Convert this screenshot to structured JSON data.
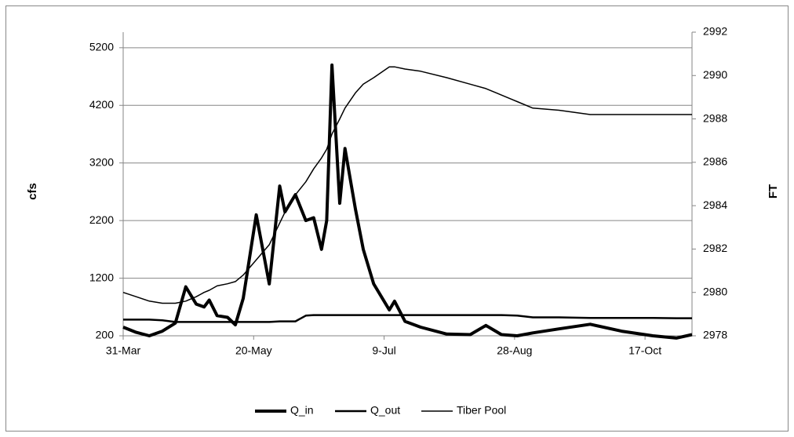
{
  "chart_data": {
    "type": "line",
    "y_label": "cfs",
    "y2_label": "FT",
    "x": [
      "03-31",
      "04-05",
      "04-10",
      "04-15",
      "04-20",
      "04-24",
      "04-28",
      "05-01",
      "05-03",
      "05-06",
      "05-10",
      "05-13",
      "05-16",
      "05-21",
      "05-26",
      "05-30",
      "06-01",
      "06-05",
      "06-09",
      "06-12",
      "06-15",
      "06-17",
      "06-19",
      "06-22",
      "06-24",
      "06-28",
      "07-01",
      "07-05",
      "07-11",
      "07-13",
      "07-17",
      "07-23",
      "08-02",
      "08-11",
      "08-17",
      "08-23",
      "08-29",
      "09-04",
      "09-14",
      "09-26",
      "10-08",
      "10-20",
      "10-29",
      "11-04"
    ],
    "series": [
      {
        "name": "Q_in",
        "color": "#000000",
        "width": 4,
        "values": [
          350,
          260,
          200,
          280,
          420,
          1050,
          750,
          700,
          820,
          550,
          520,
          390,
          850,
          2300,
          1100,
          2800,
          2350,
          2650,
          2200,
          2250,
          1700,
          2200,
          4900,
          2500,
          3450,
          2400,
          1700,
          1100,
          650,
          800,
          450,
          350,
          230,
          220,
          380,
          220,
          200,
          250,
          320,
          400,
          280,
          200,
          160,
          220
        ]
      },
      {
        "name": "Q_out",
        "color": "#000000",
        "width": 2.5,
        "values": [
          480,
          480,
          480,
          470,
          440,
          440,
          440,
          440,
          440,
          440,
          440,
          440,
          440,
          440,
          440,
          450,
          450,
          450,
          550,
          560,
          560,
          560,
          560,
          560,
          560,
          560,
          560,
          560,
          560,
          560,
          560,
          560,
          560,
          560,
          560,
          560,
          550,
          520,
          520,
          510,
          510,
          510,
          505,
          505
        ]
      },
      {
        "name": "Tiber Pool",
        "color": "#000000",
        "width": 1.5,
        "axis": "y2",
        "values": [
          2980.0,
          2979.8,
          2979.6,
          2979.5,
          2979.5,
          2979.6,
          2979.8,
          2980.0,
          2980.1,
          2980.3,
          2980.4,
          2980.5,
          2980.8,
          2981.5,
          2982.2,
          2983.2,
          2983.7,
          2984.5,
          2985.1,
          2985.7,
          2986.2,
          2986.6,
          2987.3,
          2988.0,
          2988.5,
          2989.2,
          2989.6,
          2989.9,
          2990.4,
          2990.4,
          2990.3,
          2990.2,
          2989.9,
          2989.6,
          2989.4,
          2989.1,
          2988.8,
          2988.5,
          2988.4,
          2988.2,
          2988.2,
          2988.2,
          2988.2,
          2988.2
        ]
      }
    ],
    "xlim": [
      "03-31",
      "11-04"
    ],
    "xticks": [
      {
        "value": "03-31",
        "label": "31-Mar"
      },
      {
        "value": "05-20",
        "label": "20-May"
      },
      {
        "value": "07-09",
        "label": "9-Jul"
      },
      {
        "value": "08-28",
        "label": "28-Aug"
      },
      {
        "value": "10-17",
        "label": "17-Oct"
      }
    ],
    "ylim": [
      200,
      5470
    ],
    "yticks": [
      200,
      1200,
      2200,
      3200,
      4200,
      5200
    ],
    "y2lim": [
      2978,
      2992
    ],
    "y2ticks": [
      2978,
      2980,
      2982,
      2984,
      2986,
      2988,
      2990,
      2992
    ],
    "grid": true,
    "legend": "bottom"
  }
}
